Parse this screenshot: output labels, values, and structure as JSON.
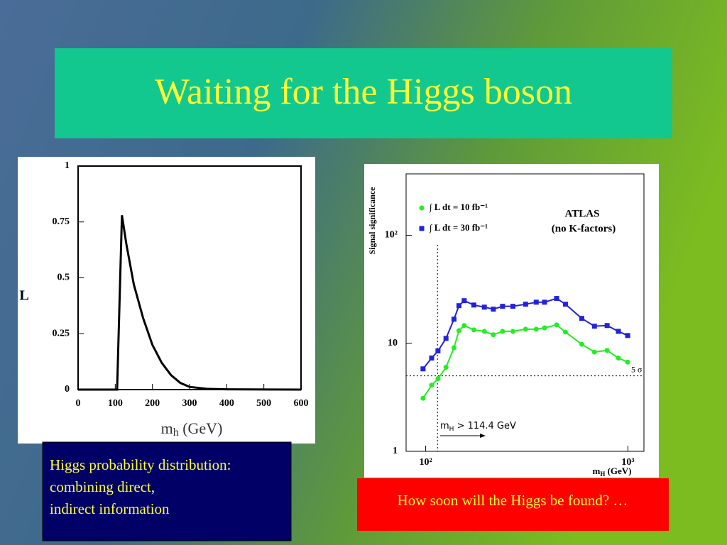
{
  "slide": {
    "title": "Waiting for the Higgs boson",
    "captions": [
      [
        "Higgs probability distribution:",
        "combining direct,",
        "indirect information"
      ],
      [
        "How soon will the Higgs be found? …"
      ]
    ]
  },
  "chart_data": [
    {
      "type": "line",
      "xlabel": [
        "m",
        "h",
        " (GeV)"
      ],
      "ylabel": "L",
      "x": [
        0,
        105,
        118,
        130,
        150,
        175,
        200,
        225,
        250,
        275,
        300,
        350,
        400,
        600
      ],
      "values": [
        0,
        0,
        0.78,
        0.65,
        0.47,
        0.32,
        0.2,
        0.12,
        0.065,
        0.03,
        0.012,
        0.003,
        0.001,
        0
      ],
      "color": "#000000",
      "xlim": [
        0,
        600
      ],
      "xticks": [
        0,
        100,
        200,
        300,
        400,
        500,
        600
      ],
      "ylim": [
        0,
        1
      ],
      "yticks": [
        0,
        0.25,
        0.5,
        0.75,
        1
      ]
    },
    {
      "type": "scatter-line",
      "log_x": true,
      "log_y": true,
      "xlabel": [
        "m",
        "H",
        " (GeV)"
      ],
      "ylabel": "Signal significance",
      "x": [
        97,
        107,
        115,
        126,
        138,
        146,
        155,
        173,
        195,
        216,
        240,
        270,
        312,
        352,
        387,
        444,
        491,
        591,
        683,
        789,
        897,
        997
      ],
      "series": [
        {
          "name": "∫ L dt = 10 fb⁻¹",
          "color": "#22ee22",
          "marker": "circle",
          "values": [
            3.1,
            4.1,
            4.7,
            6.0,
            9.1,
            13.1,
            14.6,
            13.3,
            12.9,
            12.0,
            12.9,
            12.9,
            13.5,
            13.5,
            13.9,
            14.8,
            12.7,
            9.8,
            8.3,
            8.6,
            7.3,
            6.7
          ]
        },
        {
          "name": "∫ L dt = 30 fb⁻¹",
          "color": "#2222dd",
          "marker": "square",
          "values": [
            5.8,
            7.3,
            8.5,
            11.1,
            16.7,
            22.3,
            24.8,
            22.6,
            21.6,
            20.7,
            22.0,
            22.0,
            23.0,
            24.0,
            24.0,
            26.0,
            23.0,
            17.0,
            14.4,
            14.6,
            12.9,
            11.8
          ]
        }
      ],
      "hline": 5,
      "vline": 114.4,
      "annotations": {
        "experiment": "ATLAS",
        "note": "(no K-factors)",
        "sigma": "5 σ",
        "limit": [
          "m",
          "H",
          " > 114.4 GeV"
        ]
      },
      "xlim": [
        80,
        1200
      ],
      "xticks": [
        {
          "value": 100,
          "label": "10²"
        },
        {
          "value": 1000,
          "label": "10³"
        }
      ],
      "ylim": [
        1,
        370
      ],
      "yticks": [
        1,
        10,
        {
          "value": 100,
          "label": "10²"
        }
      ]
    }
  ]
}
